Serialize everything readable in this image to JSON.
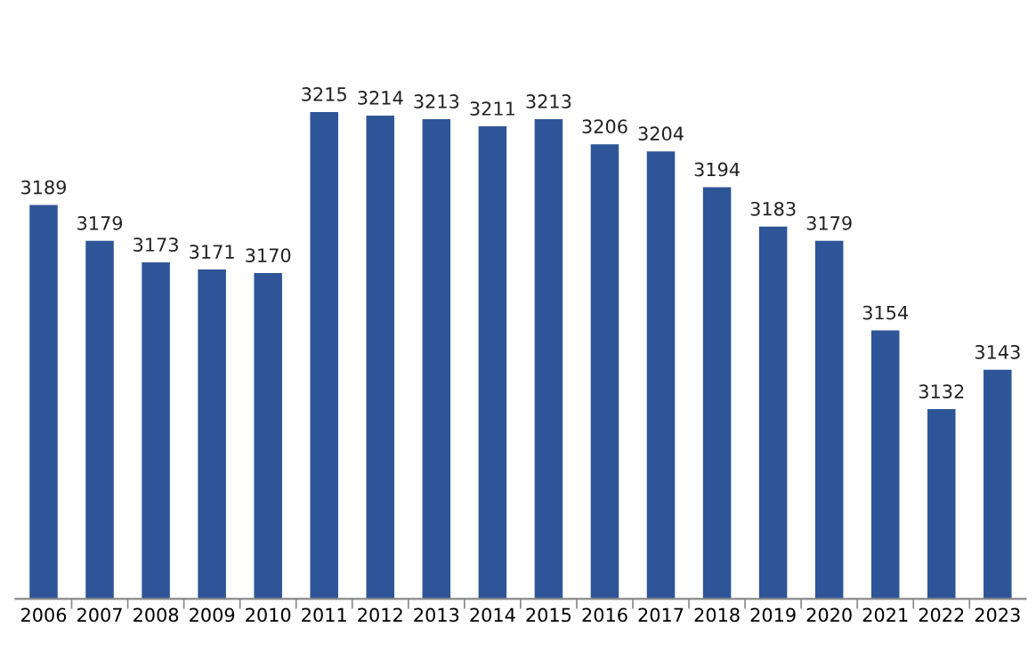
{
  "chart_data": {
    "type": "bar",
    "categories": [
      "2006",
      "2007",
      "2008",
      "2009",
      "2010",
      "2011",
      "2012",
      "2013",
      "2014",
      "2015",
      "2016",
      "2017",
      "2018",
      "2019",
      "2020",
      "2021",
      "2022",
      "2023"
    ],
    "values": [
      3189,
      3179,
      3173,
      3171,
      3170,
      3215,
      3214,
      3213,
      3211,
      3213,
      3206,
      3204,
      3194,
      3183,
      3179,
      3154,
      3132,
      3143
    ],
    "color": "#2e5597",
    "ylim": [
      3079,
      3215
    ],
    "data_labels": true,
    "grid": false,
    "legend": false,
    "tick_labels": "x"
  }
}
